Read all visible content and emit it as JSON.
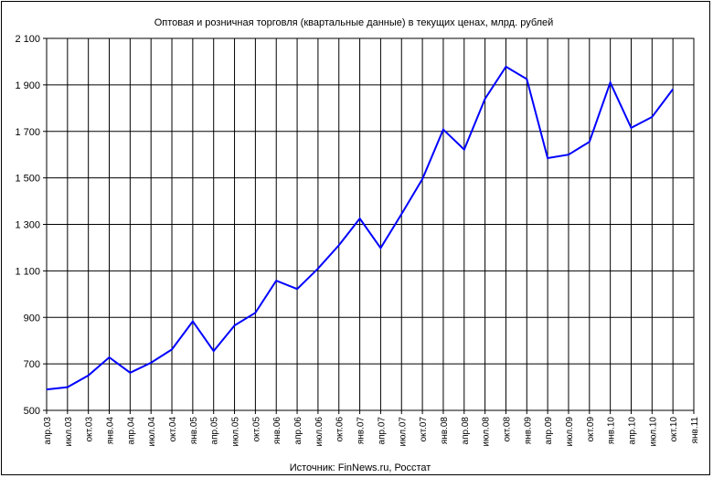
{
  "chart_data": {
    "type": "line",
    "title": "Оптовая и розничная торговля (квартальные данные) в текущих ценах, млрд. рублей",
    "source": "Источник: FinNews.ru, Росстат",
    "xlabel": "",
    "ylabel": "",
    "ylim": [
      500,
      2100
    ],
    "yticks": [
      500,
      700,
      900,
      1100,
      1300,
      1500,
      1700,
      1900,
      2100
    ],
    "ytick_labels": [
      "500",
      "700",
      "900",
      "1 100",
      "1 300",
      "1 500",
      "1 700",
      "1 900",
      "2 100"
    ],
    "grid": true,
    "legend": "none",
    "line_color": "#0000ff",
    "categories": [
      "апр.03",
      "июл.03",
      "окт.03",
      "янв.04",
      "апр.04",
      "июл.04",
      "окт.04",
      "янв.05",
      "апр.05",
      "июл.05",
      "окт.05",
      "янв.06",
      "апр.06",
      "июл.06",
      "окт.06",
      "янв.07",
      "апр.07",
      "июл.07",
      "окт.07",
      "янв.08",
      "апр.08",
      "июл.08",
      "окт.08",
      "янв.09",
      "апр.09",
      "июл.09",
      "окт.09",
      "янв.10",
      "апр.10",
      "июл.10",
      "окт.10",
      "янв.11"
    ],
    "values": [
      590,
      600,
      650,
      728,
      662,
      705,
      762,
      883,
      755,
      865,
      920,
      1058,
      1022,
      1110,
      1210,
      1325,
      1198,
      1345,
      1495,
      1708,
      1622,
      1840,
      1978,
      1925,
      1585,
      1600,
      1655,
      1910,
      1715,
      1762,
      1882,
      null
    ]
  }
}
